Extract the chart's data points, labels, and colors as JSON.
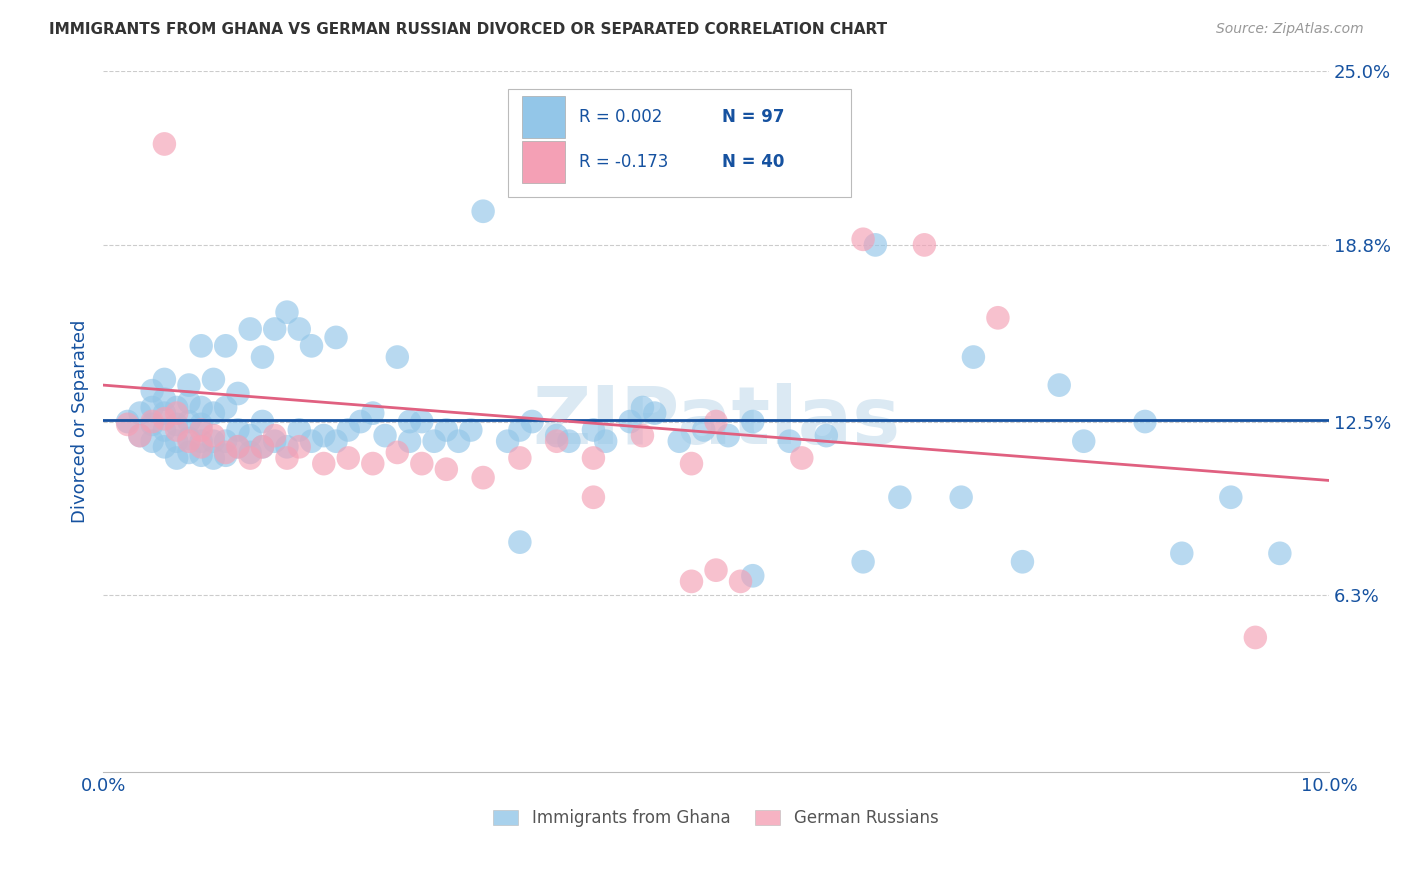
{
  "title": "IMMIGRANTS FROM GHANA VS GERMAN RUSSIAN DIVORCED OR SEPARATED CORRELATION CHART",
  "source": "Source: ZipAtlas.com",
  "ylabel": "Divorced or Separated",
  "xmin": 0.0,
  "xmax": 0.1,
  "ymin": 0.0,
  "ymax": 0.25,
  "yticks": [
    0.0,
    0.063,
    0.125,
    0.188,
    0.25
  ],
  "ytick_labels": [
    "",
    "6.3%",
    "12.5%",
    "18.8%",
    "25.0%"
  ],
  "xticks": [
    0.0,
    0.02,
    0.04,
    0.06,
    0.08,
    0.1
  ],
  "xtick_labels": [
    "0.0%",
    "",
    "",
    "",
    "",
    "10.0%"
  ],
  "legend_r1": "R = 0.002",
  "legend_n1": "N = 97",
  "legend_r2": "R = -0.173",
  "legend_n2": "N = 40",
  "color_blue": "#93c6e8",
  "color_pink": "#f4a0b5",
  "line_blue": "#1652a0",
  "line_pink": "#e06080",
  "legend_text_color": "#1652a0",
  "legend_label1": "Immigrants from Ghana",
  "legend_label2": "German Russians",
  "blue_scatter_x": [
    0.002,
    0.003,
    0.003,
    0.004,
    0.004,
    0.004,
    0.004,
    0.005,
    0.005,
    0.005,
    0.005,
    0.005,
    0.006,
    0.006,
    0.006,
    0.006,
    0.007,
    0.007,
    0.007,
    0.007,
    0.007,
    0.008,
    0.008,
    0.008,
    0.008,
    0.008,
    0.009,
    0.009,
    0.009,
    0.009,
    0.01,
    0.01,
    0.01,
    0.01,
    0.011,
    0.011,
    0.011,
    0.012,
    0.012,
    0.012,
    0.013,
    0.013,
    0.013,
    0.014,
    0.014,
    0.015,
    0.015,
    0.016,
    0.016,
    0.017,
    0.017,
    0.018,
    0.019,
    0.019,
    0.02,
    0.021,
    0.022,
    0.023,
    0.024,
    0.025,
    0.026,
    0.027,
    0.028,
    0.029,
    0.03,
    0.031,
    0.033,
    0.034,
    0.035,
    0.037,
    0.038,
    0.04,
    0.041,
    0.043,
    0.045,
    0.047,
    0.049,
    0.051,
    0.053,
    0.056,
    0.059,
    0.062,
    0.065,
    0.07,
    0.075,
    0.08,
    0.085,
    0.088,
    0.092,
    0.096,
    0.063,
    0.071,
    0.078,
    0.053,
    0.044,
    0.034,
    0.025
  ],
  "blue_scatter_y": [
    0.125,
    0.12,
    0.128,
    0.118,
    0.124,
    0.13,
    0.136,
    0.116,
    0.122,
    0.128,
    0.133,
    0.14,
    0.112,
    0.118,
    0.124,
    0.13,
    0.114,
    0.119,
    0.125,
    0.132,
    0.138,
    0.113,
    0.118,
    0.124,
    0.13,
    0.152,
    0.112,
    0.118,
    0.128,
    0.14,
    0.113,
    0.118,
    0.13,
    0.152,
    0.116,
    0.122,
    0.135,
    0.114,
    0.12,
    0.158,
    0.116,
    0.125,
    0.148,
    0.118,
    0.158,
    0.116,
    0.164,
    0.122,
    0.158,
    0.118,
    0.152,
    0.12,
    0.155,
    0.118,
    0.122,
    0.125,
    0.128,
    0.12,
    0.148,
    0.118,
    0.125,
    0.118,
    0.122,
    0.118,
    0.122,
    0.2,
    0.118,
    0.122,
    0.125,
    0.12,
    0.118,
    0.122,
    0.118,
    0.125,
    0.128,
    0.118,
    0.122,
    0.12,
    0.125,
    0.118,
    0.12,
    0.075,
    0.098,
    0.098,
    0.075,
    0.118,
    0.125,
    0.078,
    0.098,
    0.078,
    0.188,
    0.148,
    0.138,
    0.07,
    0.13,
    0.082,
    0.125
  ],
  "pink_scatter_x": [
    0.002,
    0.003,
    0.004,
    0.005,
    0.005,
    0.006,
    0.006,
    0.007,
    0.008,
    0.008,
    0.009,
    0.01,
    0.011,
    0.012,
    0.013,
    0.014,
    0.015,
    0.016,
    0.018,
    0.02,
    0.022,
    0.024,
    0.026,
    0.028,
    0.031,
    0.034,
    0.037,
    0.04,
    0.044,
    0.048,
    0.048,
    0.052,
    0.057,
    0.062,
    0.067,
    0.073,
    0.05,
    0.04,
    0.094,
    0.05
  ],
  "pink_scatter_y": [
    0.124,
    0.12,
    0.125,
    0.224,
    0.126,
    0.122,
    0.128,
    0.118,
    0.122,
    0.116,
    0.12,
    0.114,
    0.116,
    0.112,
    0.116,
    0.12,
    0.112,
    0.116,
    0.11,
    0.112,
    0.11,
    0.114,
    0.11,
    0.108,
    0.105,
    0.112,
    0.118,
    0.112,
    0.12,
    0.11,
    0.068,
    0.068,
    0.112,
    0.19,
    0.188,
    0.162,
    0.125,
    0.098,
    0.048,
    0.072
  ],
  "blue_line_x": [
    0.0,
    0.1
  ],
  "blue_line_y": [
    0.1255,
    0.1255
  ],
  "pink_line_x": [
    0.0,
    0.1
  ],
  "pink_line_y": [
    0.138,
    0.104
  ],
  "watermark": "ZIPatlas",
  "background_color": "#ffffff",
  "grid_color": "#cccccc",
  "title_color": "#333333",
  "axis_color": "#1652a0",
  "tick_color": "#1652a0"
}
